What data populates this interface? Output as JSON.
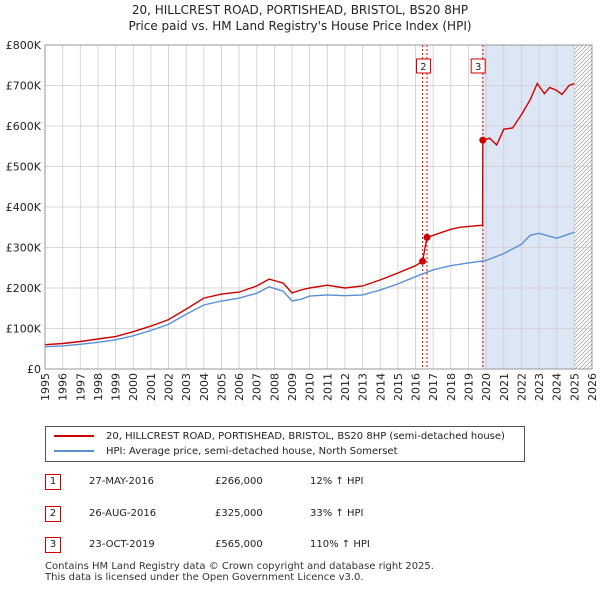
{
  "title_line1": "20, HILLCREST ROAD, PORTISHEAD, BRISTOL, BS20 8HP",
  "title_line2": "Price paid vs. HM Land Registry's House Price Index (HPI)",
  "legend": {
    "property": "20, HILLCREST ROAD, PORTISHEAD, BRISTOL, BS20 8HP (semi-detached house)",
    "hpi": "HPI: Average price, semi-detached house, North Somerset"
  },
  "sales": [
    {
      "num": "1",
      "date": "27-MAY-2016",
      "price": "£266,000",
      "hpi": "12% ↑ HPI"
    },
    {
      "num": "2",
      "date": "26-AUG-2016",
      "price": "£325,000",
      "hpi": "33% ↑ HPI"
    },
    {
      "num": "3",
      "date": "23-OCT-2019",
      "price": "£565,000",
      "hpi": "110% ↑ HPI"
    }
  ],
  "footer": {
    "line1": "Contains HM Land Registry data © Crown copyright and database right 2025.",
    "line2": "This data is licensed under the Open Government Licence v3.0."
  },
  "colors": {
    "property": "#cc0000",
    "hpi": "#5b8fd0",
    "vline": "#dd0000",
    "shade": "#dde6f5",
    "grid": "#cccccc"
  },
  "chart_data": {
    "type": "line",
    "xlim": [
      1995,
      2026
    ],
    "ylim": [
      0,
      800000
    ],
    "yticks": [
      0,
      100000,
      200000,
      300000,
      400000,
      500000,
      600000,
      700000,
      800000
    ],
    "ytick_labels": [
      "£0",
      "£100K",
      "£200K",
      "£300K",
      "£400K",
      "£500K",
      "£600K",
      "£700K",
      "£800K"
    ],
    "xticks": [
      1995,
      1996,
      1997,
      1998,
      1999,
      2000,
      2001,
      2002,
      2003,
      2004,
      2005,
      2006,
      2007,
      2008,
      2009,
      2010,
      2011,
      2012,
      2013,
      2014,
      2015,
      2016,
      2017,
      2018,
      2019,
      2020,
      2021,
      2022,
      2023,
      2024,
      2025,
      2026
    ],
    "grid": true,
    "future_shade_from": 2025.0,
    "hatch_from": 2025.0,
    "sale_markers": [
      {
        "label": "1",
        "x": 2016.4,
        "y": 266000
      },
      {
        "label": "2",
        "x": 2016.65,
        "y": 325000
      },
      {
        "label": "3",
        "x": 2019.81,
        "y": 565000
      }
    ],
    "marker_boxes": [
      {
        "label": "2",
        "x": 2016.45
      },
      {
        "label": "3",
        "x": 2019.55
      }
    ],
    "series": [
      {
        "name": "20, HILLCREST ROAD, PORTISHEAD, BRISTOL, BS20 8HP (semi-detached house)",
        "x": [
          1995,
          1996,
          1997,
          1998,
          1999,
          2000,
          2001,
          2002,
          2003,
          2004,
          2005,
          2006,
          2007,
          2007.7,
          2008.5,
          2009.0,
          2009.5,
          2010,
          2011,
          2012,
          2013,
          2014,
          2015,
          2016.0,
          2016.4,
          2016.65,
          2017,
          2018,
          2018.5,
          2019,
          2019.8,
          2019.81,
          2020.2,
          2020.6,
          2021,
          2021.5,
          2022,
          2022.5,
          2022.9,
          2023.3,
          2023.6,
          2024,
          2024.3,
          2024.7,
          2025.0
        ],
        "values": [
          60000,
          63000,
          68000,
          74000,
          80000,
          92000,
          106000,
          122000,
          148000,
          175000,
          185000,
          190000,
          205000,
          222000,
          212000,
          188000,
          195000,
          200000,
          207000,
          200000,
          205000,
          220000,
          237000,
          255000,
          266000,
          325000,
          330000,
          345000,
          350000,
          352000,
          355000,
          565000,
          570000,
          553000,
          592000,
          595000,
          628000,
          665000,
          705000,
          680000,
          695000,
          688000,
          678000,
          700000,
          705000
        ]
      },
      {
        "name": "HPI: Average price, semi-detached house, North Somerset",
        "x": [
          1995,
          1996,
          1997,
          1998,
          1999,
          2000,
          2001,
          2002,
          2003,
          2004,
          2005,
          2006,
          2007,
          2007.7,
          2008.5,
          2009.0,
          2009.5,
          2010,
          2011,
          2012,
          2013,
          2014,
          2015,
          2016,
          2017,
          2018,
          2019,
          2020,
          2021,
          2022,
          2022.5,
          2023,
          2023.5,
          2024,
          2024.5,
          2025.0
        ],
        "values": [
          55000,
          57000,
          61000,
          66000,
          72000,
          82000,
          95000,
          110000,
          135000,
          158000,
          168000,
          175000,
          187000,
          203000,
          192000,
          168000,
          172000,
          180000,
          183000,
          181000,
          183000,
          195000,
          210000,
          228000,
          245000,
          255000,
          262000,
          268000,
          285000,
          308000,
          330000,
          335000,
          329000,
          323000,
          330000,
          338000
        ]
      }
    ]
  }
}
